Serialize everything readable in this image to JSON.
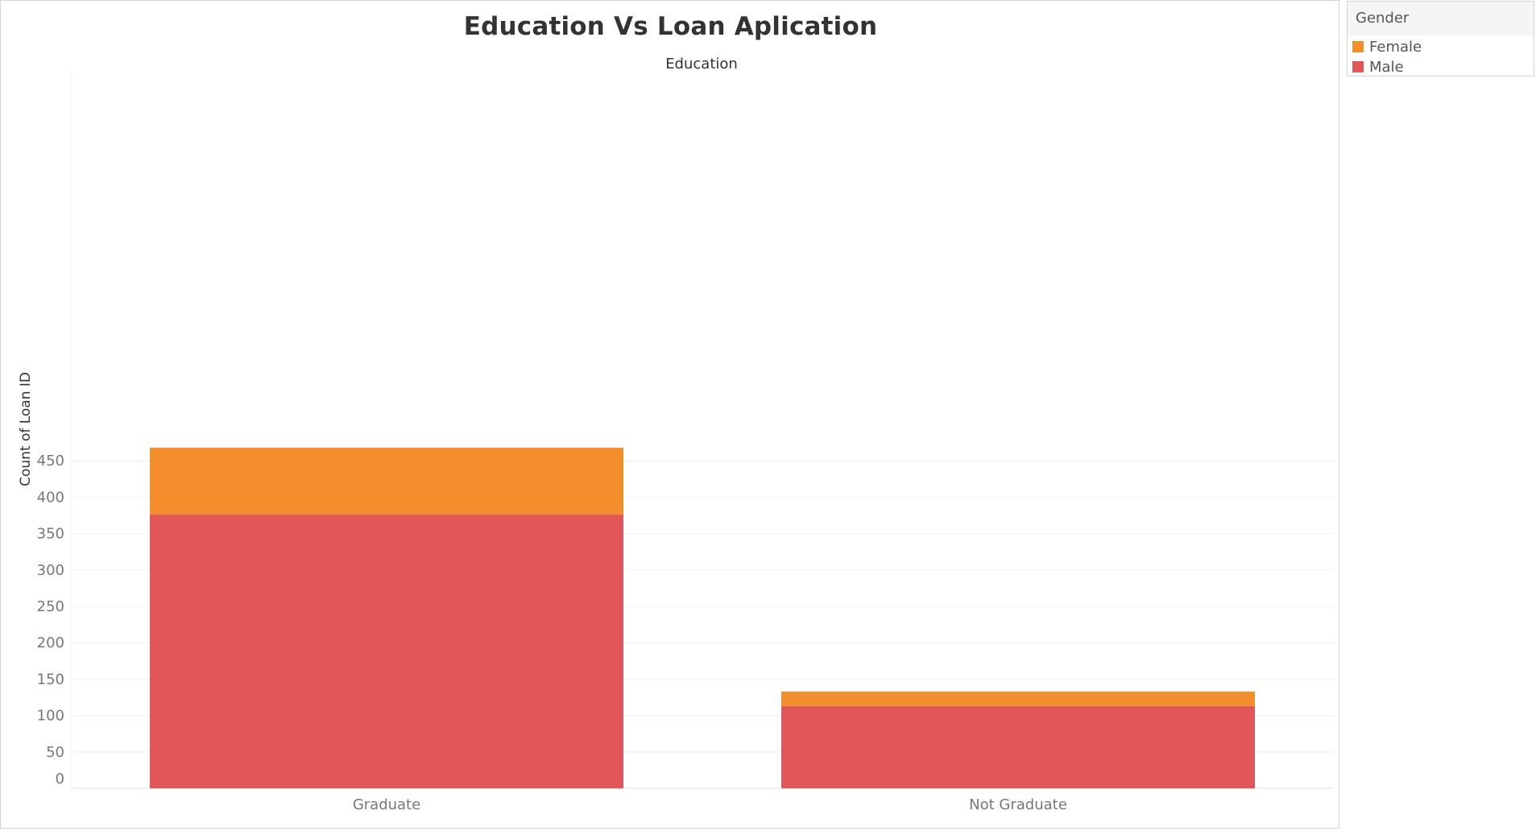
{
  "chart_data": {
    "type": "bar",
    "stacked": true,
    "title": "Education Vs Loan Aplication",
    "header_label": "Education",
    "xlabel": "",
    "ylabel": "Count of Loan ID",
    "categories": [
      "Graduate",
      "Not Graduate"
    ],
    "series": [
      {
        "name": "Male",
        "values": [
          376,
          113
        ],
        "color": "#e15759"
      },
      {
        "name": "Female",
        "values": [
          92,
          20
        ],
        "color": "#f28e2b"
      }
    ],
    "yticks": [
      0,
      50,
      100,
      150,
      200,
      250,
      300,
      350,
      400,
      450
    ],
    "ylim": [
      0,
      450
    ],
    "grid": true,
    "legend_position": "top-right"
  },
  "legend": {
    "title": "Gender",
    "items": [
      {
        "label": "Female",
        "color": "#f28e2b"
      },
      {
        "label": "Male",
        "color": "#e15759"
      }
    ]
  }
}
